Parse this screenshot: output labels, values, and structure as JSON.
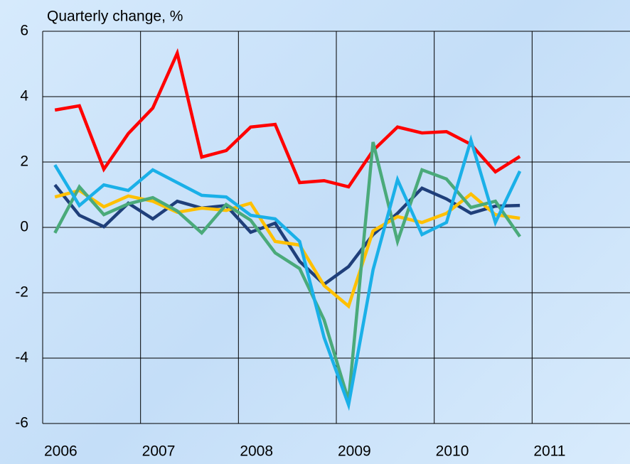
{
  "chart_data": {
    "type": "line",
    "title": "Quarterly change, %",
    "x": [
      2006.125,
      2006.375,
      2006.625,
      2006.875,
      2007.125,
      2007.375,
      2007.625,
      2007.875,
      2008.125,
      2008.375,
      2008.625,
      2008.875,
      2009.125,
      2009.375,
      2009.625,
      2009.875,
      2010.125,
      2010.375,
      2010.625,
      2010.875
    ],
    "series": [
      {
        "color": "#ff0000",
        "values": [
          3.59,
          3.72,
          1.78,
          2.87,
          3.65,
          5.33,
          2.15,
          2.35,
          3.07,
          3.15,
          1.37,
          1.43,
          1.24,
          2.35,
          3.07,
          2.89,
          2.93,
          2.54,
          1.7,
          2.17
        ]
      },
      {
        "color": "#1f3f7a",
        "values": [
          1.3,
          0.37,
          0.02,
          0.74,
          0.26,
          0.8,
          0.59,
          0.67,
          -0.15,
          0.13,
          -1.04,
          -1.74,
          -1.2,
          -0.22,
          0.43,
          1.2,
          0.87,
          0.43,
          0.65,
          0.67
        ]
      },
      {
        "color": "#ffc000",
        "values": [
          0.93,
          1.13,
          0.63,
          0.96,
          0.8,
          0.46,
          0.59,
          0.52,
          0.74,
          -0.43,
          -0.54,
          -1.78,
          -2.41,
          -0.11,
          0.33,
          0.15,
          0.43,
          1.02,
          0.39,
          0.28
        ]
      },
      {
        "color": "#4aaa7a",
        "values": [
          -0.17,
          1.24,
          0.39,
          0.72,
          0.91,
          0.5,
          -0.17,
          0.7,
          0.22,
          -0.78,
          -1.26,
          -2.83,
          -5.3,
          2.61,
          -0.43,
          1.76,
          1.48,
          0.61,
          0.8,
          -0.28
        ]
      },
      {
        "color": "#1ab0e8",
        "values": [
          1.91,
          0.67,
          1.3,
          1.13,
          1.76,
          1.37,
          0.98,
          0.93,
          0.37,
          0.26,
          -0.43,
          -3.37,
          -5.43,
          -1.3,
          1.46,
          -0.22,
          0.15,
          2.67,
          0.15,
          1.72
        ]
      }
    ],
    "xlim": [
      2006,
      2012
    ],
    "xticks": [
      2006,
      2007,
      2008,
      2009,
      2010,
      2011
    ],
    "ylim": [
      -6,
      6
    ],
    "yticks": [
      -6,
      -4,
      -2,
      0,
      2,
      4,
      6
    ],
    "grid": true
  }
}
